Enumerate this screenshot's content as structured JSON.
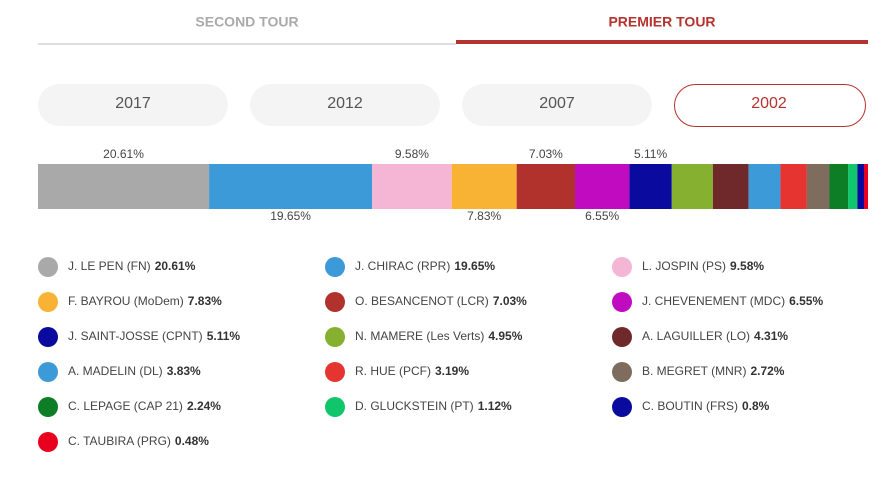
{
  "tabs": [
    {
      "label": "SECOND TOUR",
      "active": false
    },
    {
      "label": "PREMIER TOUR",
      "active": true
    }
  ],
  "years": [
    {
      "label": "2017",
      "active": false
    },
    {
      "label": "2012",
      "active": false
    },
    {
      "label": "2007",
      "active": false
    },
    {
      "label": "2002",
      "active": true
    }
  ],
  "chart_data": {
    "type": "stacked-bar",
    "categories": [
      "J. LE PEN (FN)",
      "J. CHIRAC (RPR)",
      "L. JOSPIN (PS)",
      "F. BAYROU (MoDem)",
      "O. BESANCENOT (LCR)",
      "J. CHEVENEMENT (MDC)",
      "J. SAINT-JOSSE (CPNT)",
      "N. MAMERE (Les Verts)",
      "A. LAGUILLER (LO)",
      "A. MADELIN (DL)",
      "R. HUE (PCF)",
      "B. MEGRET (MNR)",
      "C. LEPAGE (CAP 21)",
      "D. GLUCKSTEIN (PT)",
      "C. BOUTIN (FRS)",
      "C. TAUBIRA (PRG)"
    ],
    "values": [
      20.61,
      19.65,
      9.58,
      7.83,
      7.03,
      6.55,
      5.11,
      4.95,
      4.31,
      3.83,
      3.19,
      2.72,
      2.24,
      1.12,
      0.8,
      0.48
    ],
    "value_labels": [
      "20.61%",
      "19.65%",
      "9.58%",
      "7.83%",
      "7.03%",
      "6.55%",
      "5.11%",
      "4.95%",
      "4.31%",
      "3.83%",
      "3.19%",
      "2.72%",
      "2.24%",
      "1.12%",
      "0.8%",
      "0.48%"
    ],
    "colors": [
      "#aaa9a9",
      "#3d9ad8",
      "#f5b5d4",
      "#f8b334",
      "#b1312c",
      "#c10bc1",
      "#0a0a9e",
      "#86b030",
      "#70292a",
      "#3d9ad8",
      "#e63530",
      "#7e6c5f",
      "#0e7e26",
      "#11c56a",
      "#0a0a9e",
      "#e8001e"
    ]
  }
}
